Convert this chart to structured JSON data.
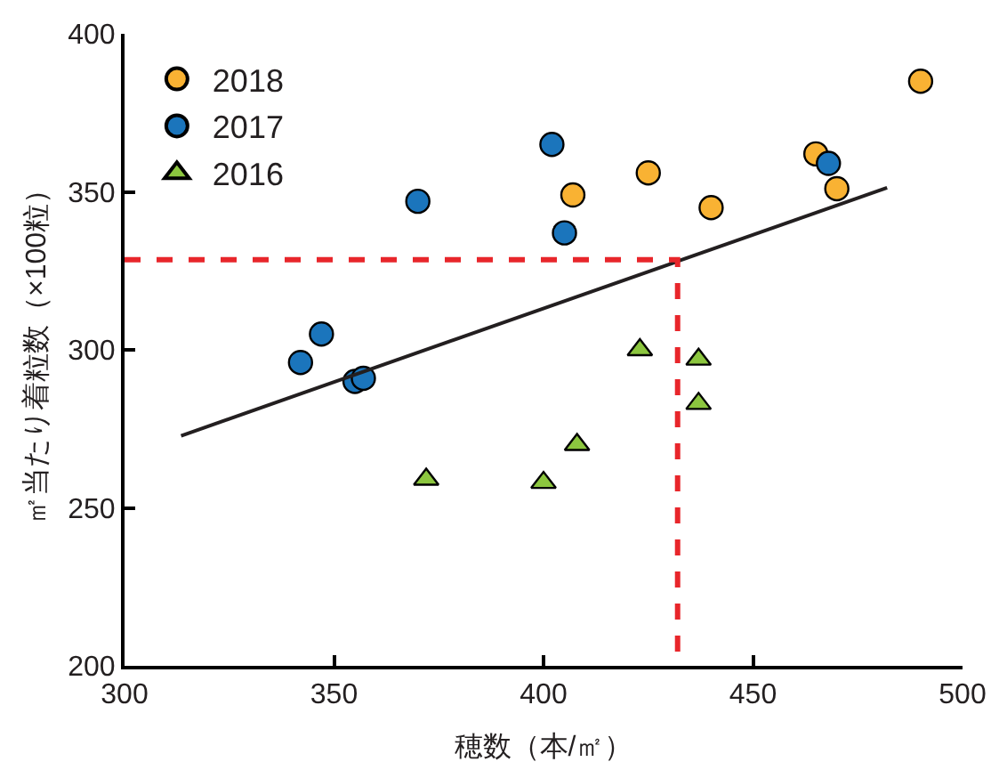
{
  "chart_data": {
    "type": "scatter",
    "xlabel": "穂数（本/㎡）",
    "ylabel": "㎡当たり着粒数（×100粒）",
    "xlim": [
      300,
      500
    ],
    "xticks": [
      300,
      350,
      400,
      450,
      500
    ],
    "ylim": [
      200,
      400
    ],
    "yticks": [
      200,
      250,
      300,
      350,
      400
    ],
    "grid": false,
    "legend": "top left",
    "series": [
      {
        "name": "2018",
        "color": "#f9b233",
        "marker": "circle",
        "x": [
          490,
          465,
          470,
          440,
          425,
          407
        ],
        "values": [
          385,
          362,
          351,
          345,
          356,
          349
        ]
      },
      {
        "name": "2017",
        "color": "#1b75bc",
        "marker": "circle",
        "x": [
          402,
          405,
          370,
          347,
          342,
          355,
          357,
          468
        ],
        "values": [
          365,
          337,
          347,
          305,
          296,
          290,
          291,
          359
        ]
      },
      {
        "name": "2016",
        "color": "#8cc63f",
        "marker": "triangle",
        "x": [
          372,
          400,
          408,
          423,
          437,
          437
        ],
        "values": [
          259,
          258,
          270,
          300,
          297,
          283
        ]
      },
      {
        "type": "line",
        "color": "#231f20",
        "line_style": "solid",
        "x": [
          313.5,
          482
        ],
        "values": [
          272.8,
          351.3
        ]
      },
      {
        "type": "line",
        "color": "#e8262b",
        "line_style": "dashed",
        "x": [
          300,
          432,
          432
        ],
        "values": [
          328.5,
          328.5,
          200
        ]
      }
    ]
  }
}
